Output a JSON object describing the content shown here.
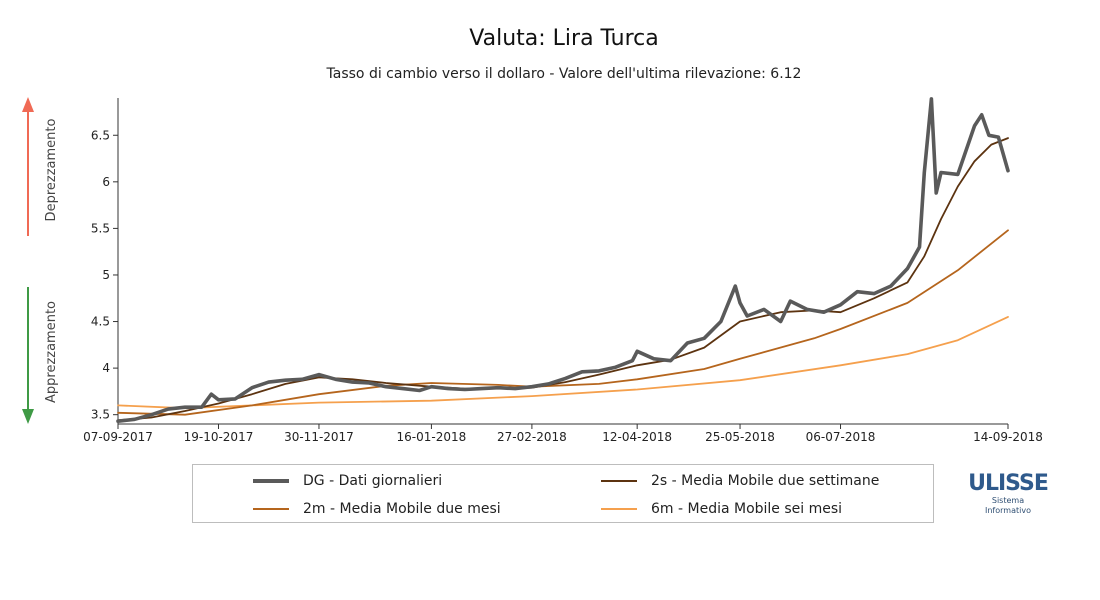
{
  "header": {
    "title": "Valuta: Lira Turca",
    "subtitle": "Tasso di cambio verso il dollaro - Valore dell'ultima rilevazione: 6.12"
  },
  "side_labels": {
    "top": "Deprezzamento",
    "bottom": "Apprezzamento"
  },
  "colors": {
    "depreciation_arrow": "#f06a55",
    "appreciation_arrow": "#3f9a45",
    "dg": "#5a5a5a",
    "s2": "#5c3310",
    "m2": "#b5651d",
    "m6": "#f5a04d"
  },
  "legend": {
    "dg": "DG - Dati giornalieri",
    "s2": "2s - Media Mobile due settimane",
    "m2": "2m - Media Mobile due mesi",
    "m6": "6m - Media Mobile sei mesi"
  },
  "logo": {
    "word": "ULISSE",
    "line1": "Sistema",
    "line2": "Informativo"
  },
  "chart_data": {
    "type": "line",
    "x_format": "DD-MM-YYYY",
    "x_range": [
      "07-09-2017",
      "14-09-2018"
    ],
    "ylim": [
      3.4,
      6.9
    ],
    "y_ticks": [
      "3.5",
      "4",
      "4.5",
      "5",
      "5.5",
      "6",
      "6.5"
    ],
    "x_ticks": [
      "07-09-2017",
      "19-10-2017",
      "30-11-2017",
      "16-01-2018",
      "27-02-2018",
      "12-04-2018",
      "25-05-2018",
      "06-07-2018",
      "14-09-2018"
    ],
    "grid": false,
    "legend_position": "bottom",
    "series": [
      {
        "key": "dg",
        "name": "DG - Dati giornalieri",
        "points": [
          [
            "07-09-2017",
            3.43
          ],
          [
            "14-09-2017",
            3.45
          ],
          [
            "21-09-2017",
            3.5
          ],
          [
            "28-09-2017",
            3.56
          ],
          [
            "05-10-2017",
            3.58
          ],
          [
            "12-10-2017",
            3.58
          ],
          [
            "16-10-2017",
            3.72
          ],
          [
            "19-10-2017",
            3.66
          ],
          [
            "26-10-2017",
            3.67
          ],
          [
            "02-11-2017",
            3.79
          ],
          [
            "09-11-2017",
            3.85
          ],
          [
            "16-11-2017",
            3.87
          ],
          [
            "23-11-2017",
            3.88
          ],
          [
            "30-11-2017",
            3.93
          ],
          [
            "07-12-2017",
            3.88
          ],
          [
            "14-12-2017",
            3.85
          ],
          [
            "21-12-2017",
            3.84
          ],
          [
            "28-12-2017",
            3.8
          ],
          [
            "04-01-2018",
            3.78
          ],
          [
            "11-01-2018",
            3.76
          ],
          [
            "16-01-2018",
            3.8
          ],
          [
            "23-01-2018",
            3.78
          ],
          [
            "30-01-2018",
            3.77
          ],
          [
            "06-02-2018",
            3.78
          ],
          [
            "13-02-2018",
            3.79
          ],
          [
            "20-02-2018",
            3.78
          ],
          [
            "27-02-2018",
            3.8
          ],
          [
            "06-03-2018",
            3.83
          ],
          [
            "13-03-2018",
            3.89
          ],
          [
            "20-03-2018",
            3.96
          ],
          [
            "27-03-2018",
            3.97
          ],
          [
            "03-04-2018",
            4.01
          ],
          [
            "10-04-2018",
            4.08
          ],
          [
            "12-04-2018",
            4.18
          ],
          [
            "19-04-2018",
            4.1
          ],
          [
            "26-04-2018",
            4.08
          ],
          [
            "03-05-2018",
            4.27
          ],
          [
            "10-05-2018",
            4.32
          ],
          [
            "17-05-2018",
            4.5
          ],
          [
            "23-05-2018",
            4.88
          ],
          [
            "25-05-2018",
            4.7
          ],
          [
            "28-05-2018",
            4.56
          ],
          [
            "04-06-2018",
            4.63
          ],
          [
            "11-06-2018",
            4.5
          ],
          [
            "15-06-2018",
            4.72
          ],
          [
            "22-06-2018",
            4.63
          ],
          [
            "29-06-2018",
            4.6
          ],
          [
            "06-07-2018",
            4.68
          ],
          [
            "13-07-2018",
            4.82
          ],
          [
            "20-07-2018",
            4.8
          ],
          [
            "27-07-2018",
            4.88
          ],
          [
            "03-08-2018",
            5.07
          ],
          [
            "08-08-2018",
            5.3
          ],
          [
            "10-08-2018",
            6.1
          ],
          [
            "13-08-2018",
            6.89
          ],
          [
            "15-08-2018",
            5.88
          ],
          [
            "17-08-2018",
            6.1
          ],
          [
            "24-08-2018",
            6.08
          ],
          [
            "31-08-2018",
            6.6
          ],
          [
            "03-09-2018",
            6.72
          ],
          [
            "06-09-2018",
            6.5
          ],
          [
            "10-09-2018",
            6.48
          ],
          [
            "14-09-2018",
            6.12
          ]
        ]
      },
      {
        "key": "s2",
        "name": "2s - Media Mobile due settimane",
        "points": [
          [
            "07-09-2017",
            3.44
          ],
          [
            "21-09-2017",
            3.47
          ],
          [
            "05-10-2017",
            3.54
          ],
          [
            "19-10-2017",
            3.62
          ],
          [
            "02-11-2017",
            3.72
          ],
          [
            "16-11-2017",
            3.83
          ],
          [
            "30-11-2017",
            3.9
          ],
          [
            "14-12-2017",
            3.88
          ],
          [
            "28-12-2017",
            3.84
          ],
          [
            "16-01-2018",
            3.8
          ],
          [
            "30-01-2018",
            3.78
          ],
          [
            "13-02-2018",
            3.78
          ],
          [
            "27-02-2018",
            3.79
          ],
          [
            "13-03-2018",
            3.85
          ],
          [
            "27-03-2018",
            3.93
          ],
          [
            "12-04-2018",
            4.03
          ],
          [
            "26-04-2018",
            4.09
          ],
          [
            "10-05-2018",
            4.22
          ],
          [
            "25-05-2018",
            4.5
          ],
          [
            "11-06-2018",
            4.6
          ],
          [
            "25-06-2018",
            4.62
          ],
          [
            "06-07-2018",
            4.6
          ],
          [
            "20-07-2018",
            4.75
          ],
          [
            "03-08-2018",
            4.92
          ],
          [
            "10-08-2018",
            5.2
          ],
          [
            "17-08-2018",
            5.6
          ],
          [
            "24-08-2018",
            5.95
          ],
          [
            "31-08-2018",
            6.22
          ],
          [
            "07-09-2018",
            6.4
          ],
          [
            "14-09-2018",
            6.47
          ]
        ]
      },
      {
        "key": "m2",
        "name": "2m - Media Mobile due mesi",
        "points": [
          [
            "07-09-2017",
            3.52
          ],
          [
            "05-10-2017",
            3.5
          ],
          [
            "02-11-2017",
            3.6
          ],
          [
            "30-11-2017",
            3.72
          ],
          [
            "28-12-2017",
            3.81
          ],
          [
            "16-01-2018",
            3.84
          ],
          [
            "13-02-2018",
            3.82
          ],
          [
            "27-02-2018",
            3.8
          ],
          [
            "27-03-2018",
            3.83
          ],
          [
            "12-04-2018",
            3.88
          ],
          [
            "10-05-2018",
            3.99
          ],
          [
            "25-05-2018",
            4.1
          ],
          [
            "25-06-2018",
            4.32
          ],
          [
            "06-07-2018",
            4.42
          ],
          [
            "03-08-2018",
            4.7
          ],
          [
            "24-08-2018",
            5.05
          ],
          [
            "14-09-2018",
            5.48
          ]
        ]
      },
      {
        "key": "m6",
        "name": "6m - Media Mobile sei mesi",
        "points": [
          [
            "07-09-2017",
            3.6
          ],
          [
            "05-10-2017",
            3.57
          ],
          [
            "02-11-2017",
            3.6
          ],
          [
            "30-11-2017",
            3.63
          ],
          [
            "16-01-2018",
            3.65
          ],
          [
            "27-02-2018",
            3.7
          ],
          [
            "12-04-2018",
            3.77
          ],
          [
            "25-05-2018",
            3.87
          ],
          [
            "06-07-2018",
            4.03
          ],
          [
            "03-08-2018",
            4.15
          ],
          [
            "24-08-2018",
            4.3
          ],
          [
            "14-09-2018",
            4.55
          ]
        ]
      }
    ]
  }
}
